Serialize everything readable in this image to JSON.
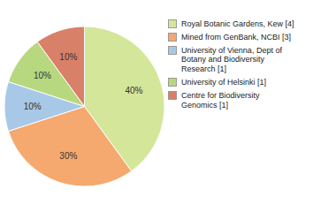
{
  "chart_data": {
    "type": "pie",
    "categories": [
      "Royal Botanic Gardens, Kew [4]",
      "Mined from GenBank, NCBI [3]",
      "University of Vienna, Dept of\nBotany and Biodiversity\nResearch [1]",
      "University of Helsinki [1]",
      "Centre for Biodiversity\nGenomics [1]"
    ],
    "values": [
      40,
      30,
      10,
      10,
      10
    ],
    "value_labels": [
      "40%",
      "30%",
      "10%",
      "10%",
      "10%"
    ],
    "colors": [
      "#d4e69a",
      "#f5a96e",
      "#a8c8e8",
      "#b8d880",
      "#d98068"
    ],
    "data_labels": true,
    "legend": "right"
  }
}
